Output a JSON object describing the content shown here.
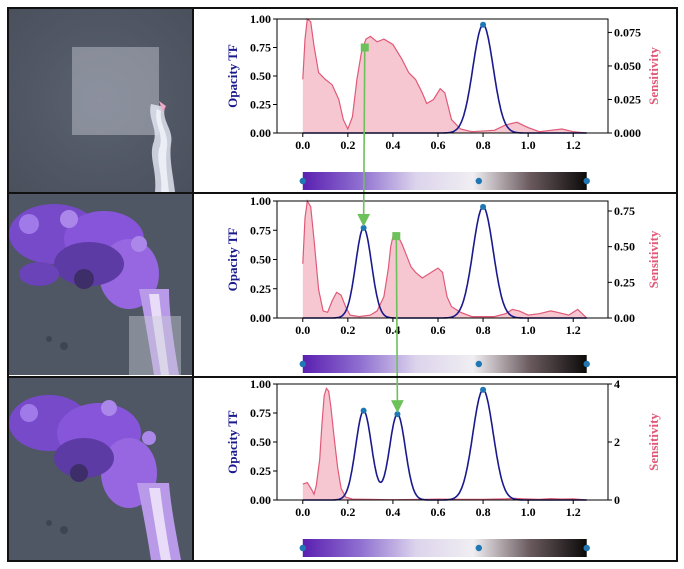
{
  "figure": {
    "frame_color": "#111111"
  },
  "colors": {
    "opacity_curve": "#1a1a8c",
    "sensitivity_line": "#e05a78",
    "sensitivity_fill": "#f6c7d1",
    "control_point": "#1f78b4",
    "arrow": "#6cc15a",
    "render_background": "#4e5562",
    "plume_purple": "#8a55e0",
    "colormap_stops": [
      "#5a1fb0",
      "#8e6ed0",
      "#dcd4ec",
      "#f0eef2",
      "#6a5a5e",
      "#0c0a0a"
    ]
  },
  "chart_data": [
    {
      "type": "line",
      "series": [
        {
          "axis": "left",
          "name": "",
          "peaks": [
            {
              "center": 0.8,
              "height": 0.95,
              "width": 0.045
            }
          ]
        },
        {
          "axis": "right",
          "name": "",
          "points": [
            [
              0.0,
              0.04
            ],
            [
              0.01,
              0.07
            ],
            [
              0.02,
              0.085
            ],
            [
              0.035,
              0.083
            ],
            [
              0.05,
              0.065
            ],
            [
              0.07,
              0.045
            ],
            [
              0.1,
              0.04
            ],
            [
              0.13,
              0.036
            ],
            [
              0.16,
              0.025
            ],
            [
              0.18,
              0.01
            ],
            [
              0.2,
              0.003
            ],
            [
              0.22,
              0.012
            ],
            [
              0.24,
              0.04
            ],
            [
              0.26,
              0.06
            ],
            [
              0.28,
              0.07
            ],
            [
              0.3,
              0.072
            ],
            [
              0.33,
              0.068
            ],
            [
              0.36,
              0.07
            ],
            [
              0.4,
              0.066
            ],
            [
              0.44,
              0.055
            ],
            [
              0.47,
              0.045
            ],
            [
              0.5,
              0.04
            ],
            [
              0.53,
              0.03
            ],
            [
              0.55,
              0.022
            ],
            [
              0.58,
              0.025
            ],
            [
              0.61,
              0.033
            ],
            [
              0.63,
              0.03
            ],
            [
              0.66,
              0.01
            ],
            [
              0.7,
              0.003
            ],
            [
              0.75,
              0.001
            ],
            [
              0.85,
              0.002
            ],
            [
              0.9,
              0.006
            ],
            [
              0.95,
              0.008
            ],
            [
              1.0,
              0.004
            ],
            [
              1.05,
              0.001
            ],
            [
              1.1,
              0.002
            ],
            [
              1.15,
              0.003
            ],
            [
              1.2,
              0.001
            ],
            [
              1.26,
              0.0
            ]
          ]
        }
      ],
      "control_points": [
        {
          "x": 0.8,
          "y": 0.95
        }
      ],
      "marker_square": {
        "x": 0.275,
        "y": 0.75
      },
      "left_axis": {
        "label": "Opacity TF",
        "ylim": [
          0,
          1.0
        ],
        "ticks": [
          "0.00",
          "0.25",
          "0.50",
          "0.75",
          "1.00"
        ],
        "values": [
          0,
          0.25,
          0.5,
          0.75,
          1.0
        ]
      },
      "right_axis": {
        "label": "Sensitivity",
        "ylim": [
          0,
          0.085
        ],
        "ticks": [
          "0.000",
          "0.025",
          "0.050",
          "0.075"
        ],
        "values": [
          0,
          0.025,
          0.05,
          0.075
        ]
      },
      "x_axis": {
        "xlim": [
          -0.07,
          1.31
        ],
        "ticks": [
          "0.0",
          "0.2",
          "0.4",
          "0.6",
          "0.8",
          "1.0",
          "1.2"
        ],
        "values": [
          0,
          0.2,
          0.4,
          0.6,
          0.8,
          1.0,
          1.2
        ]
      },
      "colorbar_points": [
        0.0,
        0.62,
        1.0
      ],
      "grid": false
    },
    {
      "type": "line",
      "series": [
        {
          "axis": "left",
          "name": "",
          "peaks": [
            {
              "center": 0.27,
              "height": 0.77,
              "width": 0.035
            },
            {
              "center": 0.8,
              "height": 0.95,
              "width": 0.045
            }
          ]
        },
        {
          "axis": "right",
          "name": "",
          "points": [
            [
              0.0,
              0.38
            ],
            [
              0.01,
              0.7
            ],
            [
              0.02,
              0.82
            ],
            [
              0.035,
              0.78
            ],
            [
              0.05,
              0.55
            ],
            [
              0.07,
              0.2
            ],
            [
              0.09,
              0.05
            ],
            [
              0.11,
              0.04
            ],
            [
              0.13,
              0.12
            ],
            [
              0.15,
              0.18
            ],
            [
              0.17,
              0.16
            ],
            [
              0.19,
              0.08
            ],
            [
              0.21,
              0.02
            ],
            [
              0.25,
              0.01
            ],
            [
              0.3,
              0.02
            ],
            [
              0.33,
              0.05
            ],
            [
              0.36,
              0.15
            ],
            [
              0.38,
              0.35
            ],
            [
              0.39,
              0.5
            ],
            [
              0.4,
              0.57
            ],
            [
              0.42,
              0.58
            ],
            [
              0.44,
              0.52
            ],
            [
              0.46,
              0.44
            ],
            [
              0.48,
              0.36
            ],
            [
              0.5,
              0.32
            ],
            [
              0.53,
              0.28
            ],
            [
              0.55,
              0.3
            ],
            [
              0.58,
              0.33
            ],
            [
              0.6,
              0.35
            ],
            [
              0.62,
              0.32
            ],
            [
              0.64,
              0.15
            ],
            [
              0.66,
              0.08
            ],
            [
              0.7,
              0.04
            ],
            [
              0.75,
              0.01
            ],
            [
              0.85,
              0.01
            ],
            [
              0.9,
              0.03
            ],
            [
              0.93,
              0.06
            ],
            [
              0.96,
              0.05
            ],
            [
              1.0,
              0.02
            ],
            [
              1.05,
              0.03
            ],
            [
              1.1,
              0.05
            ],
            [
              1.13,
              0.04
            ],
            [
              1.18,
              0.02
            ],
            [
              1.22,
              0.06
            ],
            [
              1.24,
              0.03
            ],
            [
              1.26,
              0.0
            ]
          ]
        }
      ],
      "control_points": [
        {
          "x": 0.27,
          "y": 0.77
        },
        {
          "x": 0.8,
          "y": 0.95
        }
      ],
      "marker_square": {
        "x": 0.415,
        "y": 0.7
      },
      "left_axis": {
        "label": "Opacity TF",
        "ylim": [
          0,
          1.0
        ],
        "ticks": [
          "0.00",
          "0.25",
          "0.50",
          "0.75",
          "1.00"
        ],
        "values": [
          0,
          0.25,
          0.5,
          0.75,
          1.0
        ]
      },
      "right_axis": {
        "label": "Sensitivity",
        "ylim": [
          0,
          0.82
        ],
        "ticks": [
          "0.00",
          "0.25",
          "0.50",
          "0.75"
        ],
        "values": [
          0,
          0.25,
          0.5,
          0.75
        ]
      },
      "x_axis": {
        "xlim": [
          -0.07,
          1.31
        ],
        "ticks": [
          "0.0",
          "0.2",
          "0.4",
          "0.6",
          "0.8",
          "1.0",
          "1.2"
        ],
        "values": [
          0,
          0.2,
          0.4,
          0.6,
          0.8,
          1.0,
          1.2
        ]
      },
      "colorbar_points": [
        0.0,
        0.62,
        1.0
      ],
      "grid": false
    },
    {
      "type": "line",
      "series": [
        {
          "axis": "left",
          "name": "",
          "peaks": [
            {
              "center": 0.27,
              "height": 0.77,
              "width": 0.035
            },
            {
              "center": 0.42,
              "height": 0.74,
              "width": 0.035
            },
            {
              "center": 0.8,
              "height": 0.95,
              "width": 0.045
            }
          ]
        },
        {
          "axis": "right",
          "name": "",
          "points": [
            [
              0.0,
              0.55
            ],
            [
              0.02,
              0.6
            ],
            [
              0.04,
              0.35
            ],
            [
              0.05,
              0.2
            ],
            [
              0.06,
              0.5
            ],
            [
              0.075,
              1.4
            ],
            [
              0.085,
              2.6
            ],
            [
              0.095,
              3.6
            ],
            [
              0.105,
              3.85
            ],
            [
              0.115,
              3.75
            ],
            [
              0.125,
              3.2
            ],
            [
              0.14,
              2.1
            ],
            [
              0.155,
              1.1
            ],
            [
              0.17,
              0.4
            ],
            [
              0.19,
              0.1
            ],
            [
              0.22,
              0.03
            ],
            [
              0.3,
              0.02
            ],
            [
              0.4,
              0.01
            ],
            [
              0.55,
              0.02
            ],
            [
              0.6,
              0.03
            ],
            [
              0.7,
              0.02
            ],
            [
              0.8,
              0.02
            ],
            [
              0.9,
              0.04
            ],
            [
              0.94,
              0.06
            ],
            [
              0.98,
              0.04
            ],
            [
              1.05,
              0.02
            ],
            [
              1.1,
              0.05
            ],
            [
              1.15,
              0.03
            ],
            [
              1.2,
              0.04
            ],
            [
              1.26,
              0.0
            ]
          ]
        }
      ],
      "control_points": [
        {
          "x": 0.27,
          "y": 0.77
        },
        {
          "x": 0.42,
          "y": 0.74
        },
        {
          "x": 0.8,
          "y": 0.95
        }
      ],
      "marker_square": null,
      "left_axis": {
        "label": "Opacity TF",
        "ylim": [
          0,
          1.0
        ],
        "ticks": [
          "0.00",
          "0.25",
          "0.50",
          "0.75",
          "1.00"
        ],
        "values": [
          0,
          0.25,
          0.5,
          0.75,
          1.0
        ]
      },
      "right_axis": {
        "label": "Sensitivity",
        "ylim": [
          0,
          4.0
        ],
        "ticks": [
          "0",
          "2",
          "4"
        ],
        "values": [
          0,
          2,
          4
        ]
      },
      "x_axis": {
        "xlim": [
          -0.07,
          1.31
        ],
        "ticks": [
          "0.0",
          "0.2",
          "0.4",
          "0.6",
          "0.8",
          "1.0",
          "1.2"
        ],
        "values": [
          0,
          0.2,
          0.4,
          0.6,
          0.8,
          1.0,
          1.2
        ]
      },
      "colorbar_points": [
        0.0,
        0.62,
        1.0
      ],
      "grid": false
    }
  ],
  "arrows": [
    {
      "from_panel": 0,
      "from_x": 0.275,
      "from_y": 0.75,
      "to_panel": 1,
      "to_x": 0.27,
      "to_y": 0.77
    },
    {
      "from_panel": 1,
      "from_x": 0.415,
      "from_y": 0.7,
      "to_panel": 2,
      "to_x": 0.42,
      "to_y": 0.74
    }
  ]
}
